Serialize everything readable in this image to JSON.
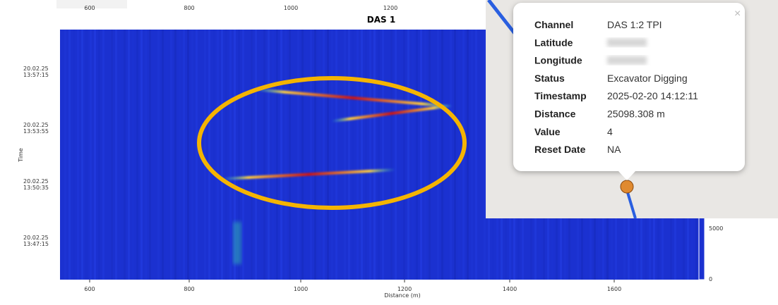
{
  "plot": {
    "title": "DAS 1",
    "x_label": "Distance (m)",
    "y_label": "Time",
    "top_ticks": [
      "600",
      "800",
      "1000",
      "1200"
    ],
    "bottom_ticks": [
      "600",
      "800",
      "1000",
      "1200",
      "1400",
      "1600"
    ],
    "y_ticks": [
      [
        "20.02.25",
        "13:57:15"
      ],
      [
        "20.02.25",
        "13:53:55"
      ],
      [
        "20.02.25",
        "13:50:35"
      ],
      [
        "20.02.25",
        "13:47:15"
      ]
    ],
    "colorbar_ticks": [
      "5000",
      "0"
    ]
  },
  "popup": {
    "close": "×",
    "rows": [
      {
        "label": "Channel",
        "value": "DAS 1:2 TPI"
      },
      {
        "label": "Latitude"
      },
      {
        "label": "Longitude"
      },
      {
        "label": "Status",
        "value": "Excavator Digging"
      },
      {
        "label": "Timestamp",
        "value": "2025-02-20 14:12:11"
      },
      {
        "label": "Distance",
        "value": "25098.308 m"
      },
      {
        "label": "Value",
        "value": "4"
      },
      {
        "label": "Reset Date",
        "value": "NA"
      }
    ]
  }
}
